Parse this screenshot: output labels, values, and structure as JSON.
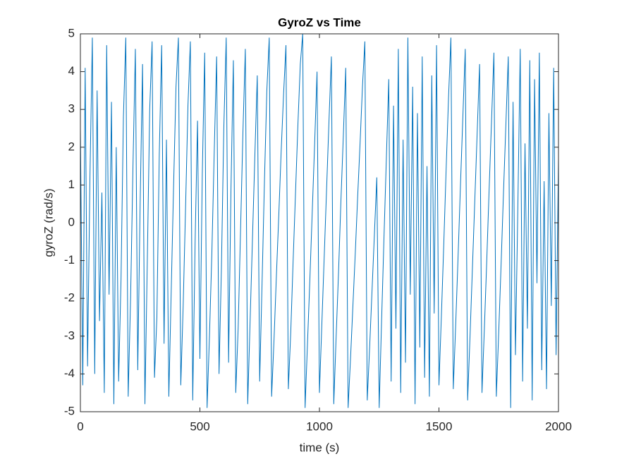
{
  "chart_data": {
    "type": "line",
    "title": "GyroZ vs Time",
    "x_label": "time (s)",
    "y_label": "gyroZ (rad/s)",
    "x": [
      0,
      10,
      20,
      30,
      40,
      50,
      60,
      70,
      80,
      90,
      100,
      110,
      120,
      130,
      140,
      150,
      160,
      170,
      180,
      190,
      200,
      210,
      220,
      230,
      240,
      250,
      260,
      270,
      280,
      290,
      300,
      310,
      320,
      330,
      340,
      350,
      360,
      370,
      380,
      390,
      400,
      410,
      420,
      430,
      440,
      450,
      460,
      470,
      480,
      490,
      500,
      510,
      520,
      530,
      540,
      550,
      560,
      570,
      580,
      590,
      600,
      610,
      620,
      630,
      640,
      650,
      660,
      670,
      680,
      690,
      700,
      710,
      720,
      730,
      740,
      750,
      760,
      770,
      780,
      790,
      800,
      810,
      820,
      830,
      840,
      850,
      860,
      870,
      880,
      890,
      900,
      910,
      920,
      930,
      940,
      950,
      960,
      970,
      980,
      990,
      1000,
      1010,
      1020,
      1030,
      1040,
      1050,
      1060,
      1070,
      1080,
      1090,
      1100,
      1110,
      1120,
      1130,
      1140,
      1150,
      1160,
      1170,
      1180,
      1190,
      1200,
      1210,
      1220,
      1230,
      1240,
      1250,
      1260,
      1270,
      1280,
      1290,
      1300,
      1310,
      1320,
      1330,
      1340,
      1350,
      1360,
      1370,
      1380,
      1390,
      1400,
      1410,
      1420,
      1430,
      1440,
      1450,
      1460,
      1470,
      1480,
      1490,
      1500,
      1510,
      1520,
      1530,
      1540,
      1550,
      1560,
      1570,
      1580,
      1590,
      1600,
      1610,
      1620,
      1630,
      1640,
      1650,
      1660,
      1670,
      1680,
      1690,
      1700,
      1710,
      1720,
      1730,
      1740,
      1750,
      1760,
      1770,
      1780,
      1790,
      1800,
      1810,
      1820,
      1830,
      1840,
      1850,
      1860,
      1870,
      1880,
      1890,
      1900,
      1910,
      1920,
      1930,
      1940,
      1950,
      1960,
      1970,
      1980,
      1990,
      2000
    ],
    "series": [
      {
        "color": "#0072bd",
        "values": [
          2.5,
          -4.3,
          4.1,
          -3.8,
          1.2,
          4.9,
          -4.0,
          3.5,
          -2.6,
          0.8,
          -4.5,
          4.7,
          -1.9,
          3.2,
          -4.8,
          2.0,
          -4.2,
          -1.5,
          2.8,
          4.9,
          -4.6,
          -2.0,
          1.5,
          4.6,
          -3.9,
          0.5,
          4.2,
          -4.8,
          -1.0,
          3.0,
          4.8,
          -4.1,
          -2.5,
          1.8,
          4.7,
          -3.2,
          2.2,
          -4.6,
          -1.8,
          1.0,
          3.6,
          4.9,
          -4.3,
          -2.2,
          0.4,
          3.1,
          4.8,
          -4.7,
          -0.5,
          2.7,
          -3.6,
          1.3,
          4.5,
          -4.9,
          -3.0,
          -0.8,
          1.9,
          4.4,
          -4.0,
          -1.2,
          2.5,
          4.9,
          -3.7,
          0.9,
          4.3,
          -4.5,
          -2.8,
          -0.2,
          2.4,
          4.6,
          -4.8,
          -2.6,
          -0.4,
          1.8,
          3.9,
          -4.2,
          -1.6,
          1.1,
          3.5,
          4.9,
          -4.6,
          -3.1,
          -1.4,
          0.2,
          1.9,
          3.4,
          4.7,
          -4.4,
          -2.9,
          -1.0,
          0.8,
          2.6,
          4.2,
          5.0,
          -4.9,
          -3.2,
          -1.5,
          0.3,
          2.1,
          4.0,
          -4.5,
          -2.7,
          -0.9,
          0.9,
          2.7,
          4.4,
          -4.8,
          -3.0,
          -1.3,
          0.6,
          2.3,
          4.1,
          -4.9,
          -3.6,
          -2.2,
          -0.8,
          0.7,
          2.1,
          3.6,
          4.8,
          -4.7,
          -3.3,
          -1.8,
          -0.3,
          1.2,
          -4.9,
          -2.6,
          -0.4,
          1.7,
          3.8,
          -4.2,
          3.1,
          -2.8,
          4.6,
          -4.5,
          2.2,
          -3.7,
          4.9,
          -1.9,
          3.6,
          -4.8,
          2.9,
          -3.3,
          4.4,
          -4.1,
          1.5,
          -4.6,
          3.9,
          -2.4,
          4.7,
          -4.3,
          -2.5,
          -0.6,
          1.4,
          3.3,
          4.9,
          -4.4,
          -2.7,
          -0.9,
          1.0,
          2.8,
          4.6,
          -4.7,
          -3.0,
          -1.2,
          0.6,
          2.4,
          4.2,
          -4.5,
          -2.8,
          -1.0,
          0.9,
          2.7,
          4.5,
          -4.6,
          -2.9,
          -1.1,
          0.8,
          2.6,
          4.4,
          -4.9,
          3.2,
          -3.5,
          0.4,
          4.6,
          -4.2,
          2.1,
          -2.8,
          4.3,
          -4.7,
          3.8,
          -1.6,
          4.5,
          -3.9,
          1.1,
          -4.4,
          2.9,
          -2.2,
          4.1,
          -3.5,
          1.7
        ]
      }
    ],
    "xlim": [
      0,
      2000
    ],
    "ylim": [
      -5,
      5
    ],
    "xticks": [
      0,
      500,
      1000,
      1500,
      2000
    ],
    "yticks": [
      -5,
      -4,
      -3,
      -2,
      -1,
      0,
      1,
      2,
      3,
      4,
      5
    ]
  }
}
